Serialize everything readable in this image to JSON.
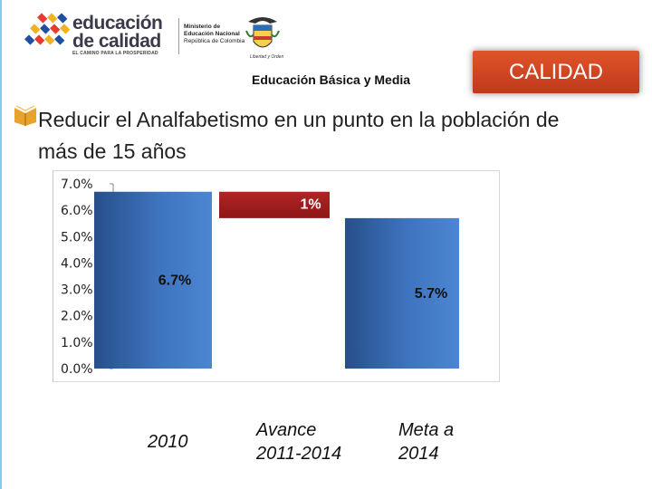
{
  "header": {
    "brand_line1": "educación",
    "brand_line2": "de calidad",
    "brand_tagline": "EL CAMINO PARA LA PROSPERIDAD",
    "ministry_line1": "Ministerio de",
    "ministry_line2": "Educación Nacional",
    "ministry_line3": "República de Colombia",
    "motto": "Libertad y Orden",
    "subtitle": "Educación Básica y Media",
    "section_badge": "CALIDAD"
  },
  "slide": {
    "heading_line1": "Reducir el Analfabetismo en un punto en la población de",
    "heading_line2": "más de 15 años"
  },
  "colors": {
    "accent_orange": "#d24a24",
    "bar_blue": "#3d6fb6",
    "bar_red": "#a01d1d",
    "bullet_gold": "#e8a42a"
  },
  "chart_data": {
    "type": "bar",
    "subtype": "waterfall",
    "categories": [
      "2010",
      "Avance 2011-2014",
      "Meta a 2014"
    ],
    "category_display": [
      [
        "2010"
      ],
      [
        "Avance",
        "2011-2014"
      ],
      [
        "Meta a",
        "2014"
      ]
    ],
    "values": [
      6.7,
      1.0,
      5.7
    ],
    "data_labels": [
      "6.7%",
      "1%",
      "5.7%"
    ],
    "y_ticks": [
      "0.0%",
      "1.0%",
      "2.0%",
      "3.0%",
      "4.0%",
      "5.0%",
      "6.0%",
      "7.0%"
    ],
    "ylim": [
      0,
      7
    ],
    "title": "",
    "xlabel": "",
    "ylabel": ""
  }
}
